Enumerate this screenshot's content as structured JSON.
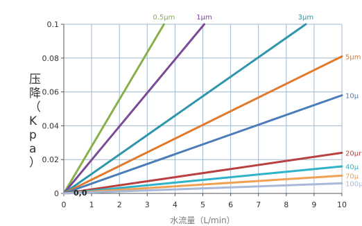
{
  "chart_data": {
    "type": "line",
    "xlabel": "水流量（L/min）",
    "ylabel": "压降（Kpa）",
    "xlim": [
      0,
      10
    ],
    "ylim": [
      0,
      0.1
    ],
    "x_ticks": [
      "0",
      "1",
      "2",
      "3",
      "4",
      "5",
      "6",
      "7",
      "8",
      "9",
      "10"
    ],
    "y_ticks": [
      "0",
      "0.02",
      "0.04",
      "0.06",
      "0.08",
      "0.1"
    ],
    "grid": true,
    "origin_label": "0,0",
    "series": [
      {
        "name": "0.5μm",
        "color": "#86b04a",
        "x": [
          0,
          3.6
        ],
        "y": [
          0,
          0.1
        ]
      },
      {
        "name": "1μm",
        "color": "#7b4a96",
        "x": [
          0,
          5.05
        ],
        "y": [
          0,
          0.1
        ]
      },
      {
        "name": "3μm",
        "color": "#2e95ab",
        "x": [
          0,
          8.7
        ],
        "y": [
          0,
          0.1
        ]
      },
      {
        "name": "5μm",
        "color": "#e07a2c",
        "x": [
          0,
          10
        ],
        "y": [
          0,
          0.081
        ]
      },
      {
        "name": "10μ",
        "color": "#4a7db8",
        "x": [
          0,
          10
        ],
        "y": [
          0,
          0.058
        ]
      },
      {
        "name": "20μr",
        "color": "#b84040",
        "x": [
          0,
          10
        ],
        "y": [
          0,
          0.024
        ]
      },
      {
        "name": "40μ",
        "color": "#2fb3c8",
        "x": [
          0,
          10
        ],
        "y": [
          0,
          0.016
        ]
      },
      {
        "name": "70μ",
        "color": "#f0a050",
        "x": [
          0,
          10
        ],
        "y": [
          0,
          0.0105
        ]
      },
      {
        "name": "100μ",
        "color": "#a8b8d8",
        "x": [
          0,
          10
        ],
        "y": [
          0,
          0.006
        ]
      }
    ]
  }
}
